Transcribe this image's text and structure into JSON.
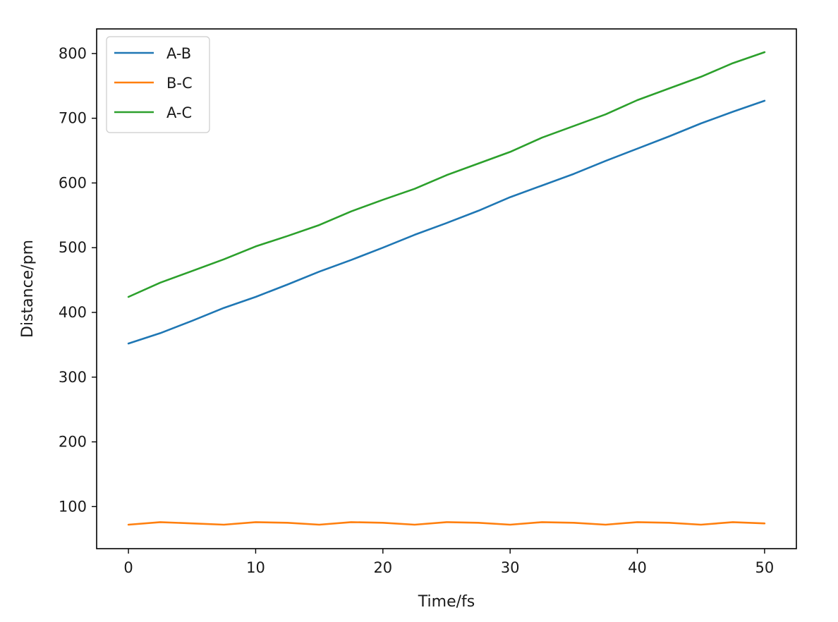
{
  "chart_data": {
    "type": "line",
    "title": "",
    "xlabel": "Time/fs",
    "ylabel": "Distance/pm",
    "xlim": [
      -2.5,
      52.5
    ],
    "ylim": [
      35,
      838
    ],
    "xticks": [
      0,
      10,
      20,
      30,
      40,
      50
    ],
    "yticks": [
      100,
      200,
      300,
      400,
      500,
      600,
      700,
      800
    ],
    "grid": false,
    "legend_position": "top-left",
    "series": [
      {
        "name": "A-B",
        "color": "#1f77b4",
        "x": [
          0,
          2.5,
          5,
          7.5,
          10,
          12.5,
          15,
          17.5,
          20,
          22.5,
          25,
          27.5,
          30,
          32.5,
          35,
          37.5,
          40,
          42.5,
          45,
          47.5,
          50
        ],
        "values": [
          352,
          368,
          387,
          407,
          424,
          443,
          463,
          481,
          500,
          520,
          538,
          557,
          578,
          596,
          614,
          634,
          653,
          672,
          692,
          710,
          727
        ]
      },
      {
        "name": "B-C",
        "color": "#ff7f0e",
        "x": [
          0,
          2.5,
          5,
          7.5,
          10,
          12.5,
          15,
          17.5,
          20,
          22.5,
          25,
          27.5,
          30,
          32.5,
          35,
          37.5,
          40,
          42.5,
          45,
          47.5,
          50
        ],
        "values": [
          72,
          76,
          74,
          72,
          76,
          75,
          72,
          76,
          75,
          72,
          76,
          75,
          72,
          76,
          75,
          72,
          76,
          75,
          72,
          76,
          74
        ]
      },
      {
        "name": "A-C",
        "color": "#2ca02c",
        "x": [
          0,
          2.5,
          5,
          7.5,
          10,
          12.5,
          15,
          17.5,
          20,
          22.5,
          25,
          27.5,
          30,
          32.5,
          35,
          37.5,
          40,
          42.5,
          45,
          47.5,
          50
        ],
        "values": [
          424,
          446,
          464,
          482,
          502,
          518,
          535,
          556,
          574,
          591,
          612,
          630,
          648,
          670,
          688,
          706,
          728,
          746,
          764,
          785,
          802
        ]
      }
    ]
  }
}
